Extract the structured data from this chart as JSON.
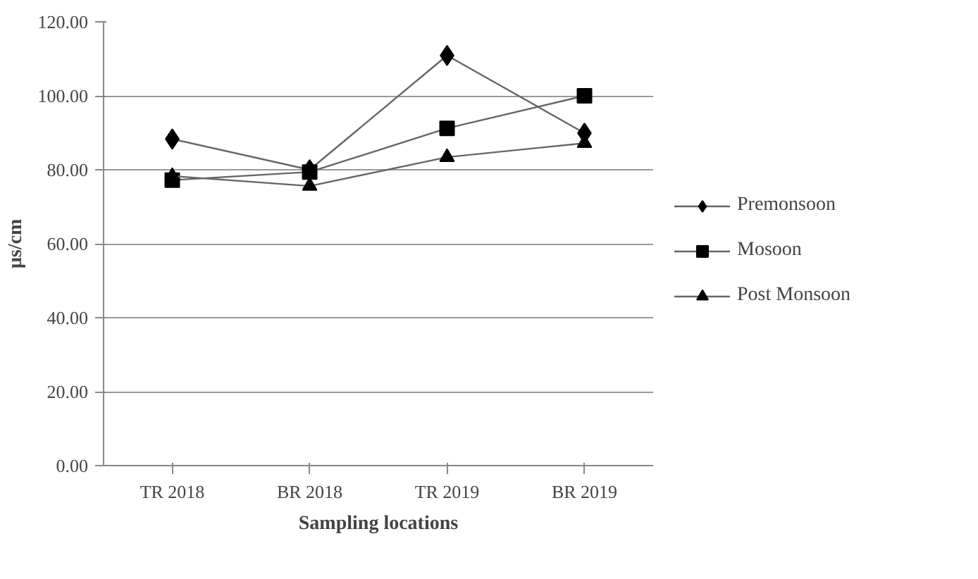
{
  "chart_data": {
    "type": "line",
    "xlabel": "Sampling locations",
    "ylabel": "µs/cm",
    "categories": [
      "TR 2018",
      "BR 2018",
      "TR 2019",
      "BR 2019"
    ],
    "series": [
      {
        "name": "Premonsoon",
        "color": "#000000",
        "marker": "diamond",
        "values": [
          88.3,
          80.0,
          110.9,
          89.9
        ]
      },
      {
        "name": "Mosoon",
        "color": "#000000",
        "marker": "square",
        "values": [
          77.2,
          79.4,
          91.2,
          100.0
        ]
      },
      {
        "name": "Post Monsoon",
        "color": "#000000",
        "marker": "triangle",
        "values": [
          78.3,
          75.6,
          83.4,
          87.2
        ]
      }
    ],
    "ylim": [
      0,
      120
    ],
    "yticks": [
      {
        "value": 0,
        "label": "0.00"
      },
      {
        "value": 20,
        "label": "20.00"
      },
      {
        "value": 40,
        "label": "40.00"
      },
      {
        "value": 60,
        "label": "60.00"
      },
      {
        "value": 80,
        "label": "80.00"
      },
      {
        "value": 100,
        "label": "100.00"
      },
      {
        "value": 120,
        "label": "120.00"
      }
    ],
    "grid": "y",
    "legend": "right",
    "line_style": "solid"
  }
}
